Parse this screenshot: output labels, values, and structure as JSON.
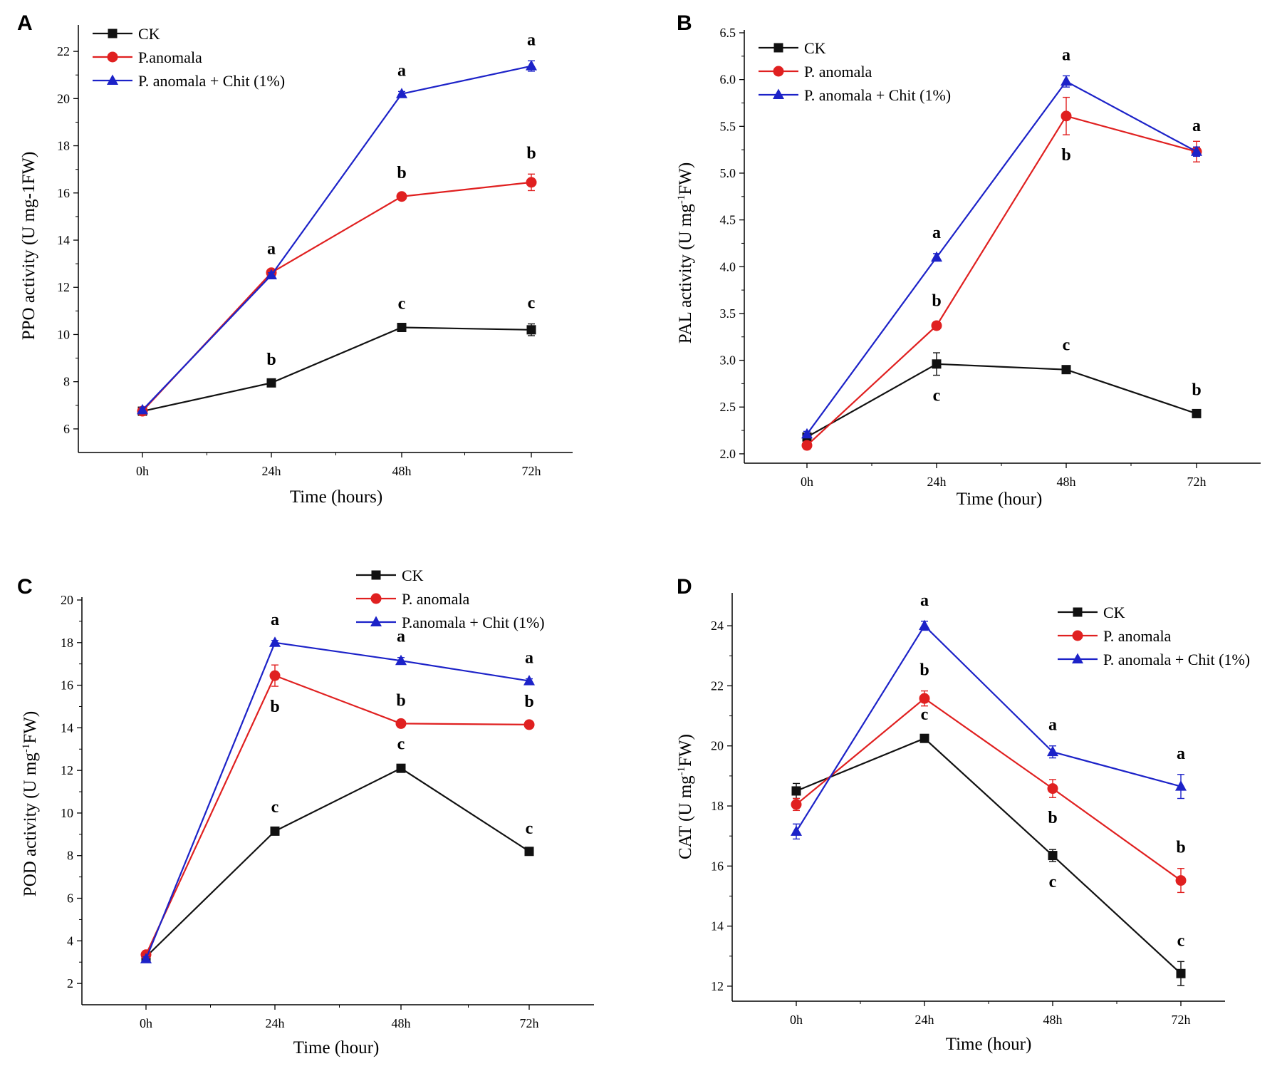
{
  "colors": {
    "ck": "#111111",
    "pa": "#e02020",
    "pac": "#1c22c8"
  },
  "chart_data": [
    {
      "panel": "A",
      "type": "line",
      "categories": [
        "0h",
        "24h",
        "48h",
        "72h"
      ],
      "ylim": [
        5,
        23
      ],
      "yticks": [
        6,
        8,
        10,
        12,
        14,
        16,
        18,
        20,
        22
      ],
      "ytick_labels": [
        "6",
        "8",
        "10",
        "12",
        "14",
        "16",
        "18",
        "20",
        "22"
      ],
      "xlabel": "Time (hours)",
      "ylabel": "PPO activity (U mg-1FW)",
      "ylabel_sup": "",
      "ylabel_end": "",
      "legend_position": "top-left",
      "series": [
        {
          "name": "CK",
          "key": "ck",
          "marker": "square",
          "values": [
            6.75,
            7.95,
            10.3,
            10.2
          ],
          "errors": [
            0.15,
            0.1,
            0.12,
            0.25
          ],
          "labels": [
            "",
            "b",
            "c",
            "c"
          ],
          "label_pos": [
            "above",
            "above",
            "above",
            "above"
          ]
        },
        {
          "name": "P.anomala",
          "key": "pa",
          "marker": "circle",
          "values": [
            6.75,
            12.62,
            15.85,
            16.45
          ],
          "errors": [
            0.1,
            0.12,
            0.12,
            0.35
          ],
          "labels": [
            "",
            "a",
            "b",
            "b"
          ],
          "label_pos": [
            "above",
            "above",
            "above",
            "above"
          ]
        },
        {
          "name": "P. anomala + Chit (1%)",
          "key": "pac",
          "marker": "triangle",
          "values": [
            6.8,
            12.52,
            20.2,
            21.38
          ],
          "errors": [
            0.1,
            0.1,
            0.1,
            0.22
          ],
          "labels": [
            "",
            "",
            "a",
            "a"
          ],
          "label_pos": [
            "above",
            "above",
            "above",
            "above"
          ]
        }
      ]
    },
    {
      "panel": "B",
      "type": "line",
      "categories": [
        "0h",
        "24h",
        "48h",
        "72h"
      ],
      "ylim": [
        1.9,
        6.5
      ],
      "yticks": [
        2.0,
        2.5,
        3.0,
        3.5,
        4.0,
        4.5,
        5.0,
        5.5,
        6.0,
        6.5
      ],
      "ytick_labels": [
        "2.0",
        "2.5",
        "3.0",
        "3.5",
        "4.0",
        "4.5",
        "5.0",
        "5.5",
        "6.0",
        "6.5"
      ],
      "xlabel": "Time (hour)",
      "ylabel": "PAL activity (U mg",
      "ylabel_sup": "-1",
      "ylabel_end": "FW)",
      "legend_position": "top-left",
      "series": [
        {
          "name": "CK",
          "key": "ck",
          "marker": "square",
          "values": [
            2.18,
            2.96,
            2.9,
            2.43
          ],
          "errors": [
            0.04,
            0.12,
            0.04,
            0.03
          ],
          "labels": [
            "",
            "c",
            "c",
            "b"
          ],
          "label_pos": [
            "above",
            "below",
            "above",
            "above"
          ]
        },
        {
          "name": "P. anomala",
          "key": "pa",
          "marker": "circle",
          "values": [
            2.09,
            3.37,
            5.61,
            5.23
          ],
          "errors": [
            0.03,
            0.04,
            0.2,
            0.11
          ],
          "labels": [
            "",
            "b",
            "b",
            ""
          ],
          "label_pos": [
            "above",
            "above",
            "below",
            "above"
          ]
        },
        {
          "name": "P. anomala + Chit (1%)",
          "key": "pac",
          "marker": "triangle",
          "values": [
            2.21,
            4.1,
            5.98,
            5.23
          ],
          "errors": [
            0.03,
            0.04,
            0.06,
            0.05
          ],
          "labels": [
            "",
            "a",
            "a",
            "a"
          ],
          "label_pos": [
            "above",
            "above",
            "above",
            "above"
          ]
        }
      ]
    },
    {
      "panel": "C",
      "type": "line",
      "categories": [
        "0h",
        "24h",
        "48h",
        "72h"
      ],
      "ylim": [
        1,
        20
      ],
      "yticks": [
        2,
        4,
        6,
        8,
        10,
        12,
        14,
        16,
        18,
        20
      ],
      "ytick_labels": [
        "2",
        "4",
        "6",
        "8",
        "10",
        "12",
        "14",
        "16",
        "18",
        "20"
      ],
      "xlabel": "Time (hour)",
      "ylabel": "POD activity (U mg",
      "ylabel_sup": "-1",
      "ylabel_end": "FW)",
      "legend_position": "top-right",
      "series": [
        {
          "name": "CK",
          "key": "ck",
          "marker": "square",
          "values": [
            3.25,
            9.15,
            12.1,
            8.2
          ],
          "errors": [
            0.1,
            0.15,
            0.15,
            0.1
          ],
          "labels": [
            "",
            "c",
            "c",
            "c"
          ],
          "label_pos": [
            "above",
            "above",
            "above",
            "above"
          ]
        },
        {
          "name": "P. anomala",
          "key": "pa",
          "marker": "circle",
          "values": [
            3.35,
            16.45,
            14.2,
            14.15
          ],
          "errors": [
            0.1,
            0.5,
            0.1,
            0.1
          ],
          "labels": [
            "",
            "b",
            "b",
            "b"
          ],
          "label_pos": [
            "above",
            "below",
            "above",
            "above"
          ]
        },
        {
          "name": "P.anomala + Chit (1%)",
          "key": "pac",
          "marker": "triangle",
          "values": [
            3.15,
            18.0,
            17.15,
            16.2
          ],
          "errors": [
            0.1,
            0.1,
            0.15,
            0.1
          ],
          "labels": [
            "",
            "a",
            "a",
            "a"
          ],
          "label_pos": [
            "above",
            "above",
            "above",
            "above"
          ]
        }
      ]
    },
    {
      "panel": "D",
      "type": "line",
      "categories": [
        "0h",
        "24h",
        "48h",
        "72h"
      ],
      "ylim": [
        11.5,
        25
      ],
      "yticks": [
        12,
        14,
        16,
        18,
        20,
        22,
        24
      ],
      "ytick_labels": [
        "12",
        "14",
        "16",
        "18",
        "20",
        "22",
        "24"
      ],
      "xlabel": "Time (hour)",
      "ylabel": "CAT (U mg",
      "ylabel_sup": "-1",
      "ylabel_end": "FW)",
      "legend_position": "top-right",
      "series": [
        {
          "name": "CK",
          "key": "ck",
          "marker": "square",
          "values": [
            18.5,
            20.25,
            16.35,
            12.42
          ],
          "errors": [
            0.25,
            0.1,
            0.2,
            0.4
          ],
          "labels": [
            "",
            "c",
            "c",
            "c"
          ],
          "label_pos": [
            "above",
            "above",
            "below",
            "above"
          ]
        },
        {
          "name": "P. anomala",
          "key": "pa",
          "marker": "circle",
          "values": [
            18.05,
            21.58,
            18.58,
            15.52
          ],
          "errors": [
            0.2,
            0.25,
            0.3,
            0.4
          ],
          "labels": [
            "",
            "b",
            "b",
            "b"
          ],
          "label_pos": [
            "above",
            "above",
            "below",
            "above"
          ]
        },
        {
          "name": "P. anomala + Chit (1%)",
          "key": "pac",
          "marker": "triangle",
          "values": [
            17.15,
            24.0,
            19.8,
            18.65
          ],
          "errors": [
            0.25,
            0.15,
            0.2,
            0.4
          ],
          "labels": [
            "",
            "a",
            "a",
            "a"
          ],
          "label_pos": [
            "above",
            "above",
            "above",
            "above"
          ]
        }
      ]
    }
  ]
}
